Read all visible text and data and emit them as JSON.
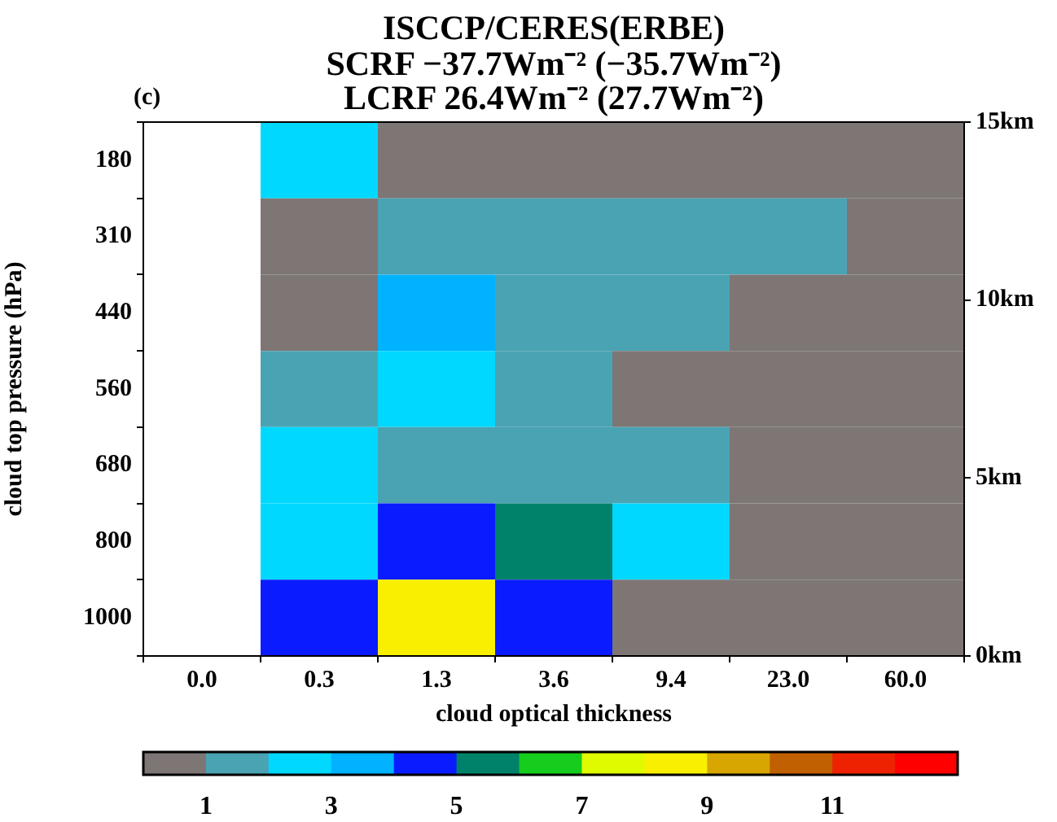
{
  "chart_data": {
    "type": "heatmap",
    "title": "ISCCP/CERES(ERBE)",
    "subtitle": "SCRF −37.7Wm⁻² (−35.7Wm⁻²)\nLCRF 26.4Wm⁻² (27.7Wm⁻²)",
    "annotations": [
      "(c)"
    ],
    "xlabel": "cloud optical thickness",
    "ylabel": "cloud top pressure (hPa)",
    "categories": [
      "0.0",
      "0.3",
      "1.3",
      "3.6",
      "9.4",
      "23.0",
      "60.0"
    ],
    "y_categories": [
      "180",
      "310",
      "440",
      "560",
      "680",
      "800",
      "1000"
    ],
    "y2lim": [
      0,
      15
    ],
    "y2ticks": [
      {
        "value": 0,
        "label": "0km"
      },
      {
        "value": 5,
        "label": "5km"
      },
      {
        "value": 10,
        "label": "10km"
      },
      {
        "value": 15,
        "label": "15km"
      }
    ],
    "cells": [
      [
        null,
        2.5,
        0.5,
        0.5,
        0.5,
        0.5,
        0.5
      ],
      [
        null,
        0.5,
        1.5,
        1.5,
        1.5,
        1.5,
        0.5
      ],
      [
        null,
        0.5,
        3.5,
        1.5,
        1.5,
        0.5,
        0.5
      ],
      [
        null,
        1.5,
        2.5,
        1.5,
        0.5,
        0.5,
        0.5
      ],
      [
        null,
        2.5,
        1.5,
        1.5,
        1.5,
        0.5,
        0.5
      ],
      [
        null,
        2.5,
        4.5,
        5.5,
        2.5,
        0.5,
        0.5
      ],
      [
        null,
        4.5,
        8.5,
        4.5,
        0.5,
        0.5,
        0.5
      ]
    ],
    "clim": [
      0,
      13
    ],
    "cticks": [
      1,
      3,
      5,
      7,
      9,
      11
    ],
    "colors": [
      "#7d7675",
      "#4aa3b3",
      "#00d8ff",
      "#00b2ff",
      "#0a1cff",
      "#00826a",
      "#16cc1c",
      "#e0fa00",
      "#f8f000",
      "#d8a600",
      "#c06000",
      "#ee2200",
      "#ff0000"
    ]
  }
}
